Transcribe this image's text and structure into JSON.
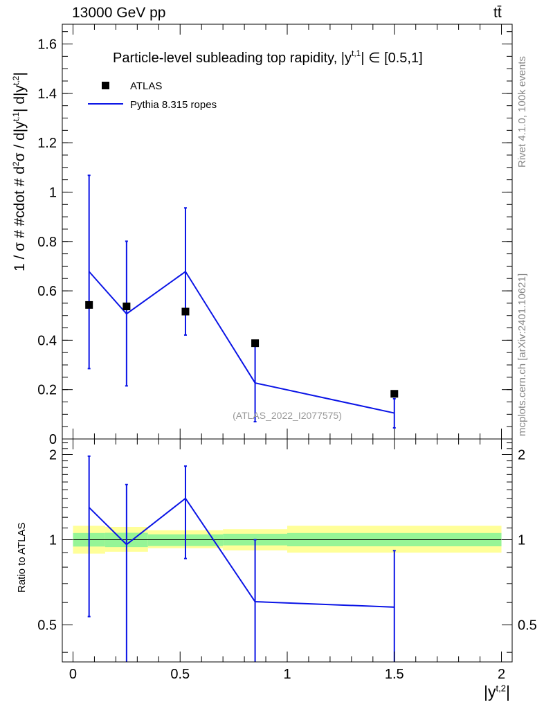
{
  "header": {
    "energy_label": "13000 GeV pp",
    "process_label": "tt̄"
  },
  "side_labels": {
    "rivet": "Rivet 4.1.0,  100k events",
    "mcplots": "mcplots.cern.ch [arXiv:2401.10621]"
  },
  "chart_data": [
    {
      "type": "scatter",
      "title": "Particle-level subleading top rapidity, |y^{t,1}| ∈ [0.5,1]",
      "ylabel": "1 / σ # #cdot # d²σ / d|y^{t,1}| d|y^{t,2}|",
      "xlabel": "|y^{t,2}|",
      "watermark": "(ATLAS_2022_I2077575)",
      "xlim": [
        -0.05,
        2.05
      ],
      "ylim": [
        0,
        1.68
      ],
      "yticks": [
        "0",
        "0.2",
        "0.4",
        "0.6",
        "0.8",
        "1",
        "1.2",
        "1.4",
        "1.6"
      ],
      "legend": {
        "placement": "top-left",
        "entries": [
          "ATLAS",
          "Pythia 8.315 ropes"
        ]
      },
      "colors": {
        "data": "#000000",
        "mc": "#0a14e6"
      },
      "series": [
        {
          "name": "ATLAS",
          "x": [
            0.075,
            0.25,
            0.525,
            0.85,
            1.5
          ],
          "y": [
            0.543,
            0.537,
            0.516,
            0.388,
            0.183
          ]
        },
        {
          "name": "Pythia 8.315 ropes",
          "x": [
            0.075,
            0.25,
            0.525,
            0.85,
            1.5
          ],
          "y": [
            0.678,
            0.507,
            0.678,
            0.227,
            0.105
          ],
          "yerr_low": [
            0.285,
            0.215,
            0.421,
            0.07,
            0.045
          ],
          "yerr_high": [
            1.068,
            0.801,
            0.936,
            0.385,
            0.163
          ],
          "bin_edges": [
            0.075,
            0.25,
            0.525,
            0.85,
            1.5
          ]
        }
      ]
    },
    {
      "type": "line",
      "ylabel": "Ratio to ATLAS",
      "xlabel": "|y^{t,2}|",
      "xlim": [
        -0.05,
        2.05
      ],
      "ylim": [
        0.37,
        2.27
      ],
      "yscale": "log",
      "yticks": [
        "0.5",
        "1",
        "2"
      ],
      "xticks": [
        "0",
        "0.5",
        "1",
        "1.5",
        "2"
      ],
      "colors": {
        "inner_band": "#96f596",
        "outer_band": "#ffff99",
        "mc": "#0a14e6"
      },
      "bands": {
        "bin_edges": [
          0,
          0.15,
          0.35,
          0.7,
          1.0,
          2.0
        ],
        "inner_low": [
          0.946,
          0.942,
          0.95,
          0.955,
          0.948
        ],
        "inner_high": [
          1.056,
          1.058,
          1.045,
          1.05,
          1.056
        ],
        "outer_low": [
          0.893,
          0.907,
          0.933,
          0.917,
          0.9
        ],
        "outer_high": [
          1.12,
          1.11,
          1.08,
          1.09,
          1.12
        ]
      },
      "series": [
        {
          "name": "Pythia 8.315 ropes",
          "x": [
            0.075,
            0.25,
            0.525,
            0.85,
            1.5
          ],
          "y": [
            1.3,
            0.962,
            1.4,
            0.604,
            0.578
          ],
          "yerr_low": [
            0.535,
            0.3,
            0.858,
            0.3,
            0.3
          ],
          "yerr_high": [
            1.974,
            1.567,
            1.82,
            1.0,
            0.915
          ]
        }
      ]
    }
  ]
}
